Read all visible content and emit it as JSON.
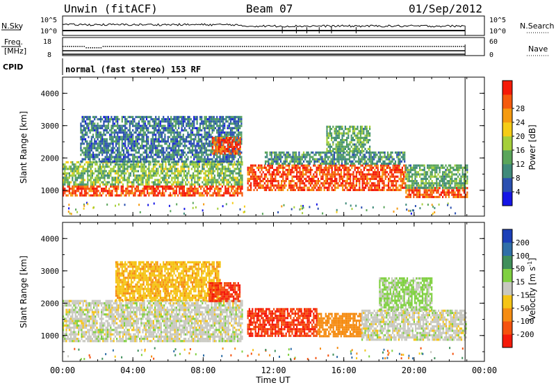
{
  "header": {
    "title": "Unwin (fitACF)",
    "beam": "Beam 07",
    "date": "01/Sep/2012",
    "mode": "normal (fast stereo) 153 RF"
  },
  "left_labels": {
    "nsky": "N.Sky",
    "freq_line1": "Freq.",
    "freq_line2": "[MHz]",
    "cpid": "CPID"
  },
  "right_labels": {
    "nsearch": "N.Search",
    "nave": "Nave"
  },
  "ticks": {
    "nsky_top": "10^5",
    "nsky_bottom": "10^0",
    "freq_top": "18",
    "freq_bottom": "8",
    "nave_top": "60",
    "nave_bottom": "0"
  },
  "axes": {
    "ylabel": "Slant Range [km]",
    "xlabel": "Time UT",
    "x_ticks": [
      "00:00",
      "04:00",
      "08:00",
      "12:00",
      "16:00",
      "20:00",
      "00:00"
    ],
    "y_ticks": [
      "1000",
      "2000",
      "3000",
      "4000"
    ]
  },
  "colorbars": {
    "power": {
      "label": "Power [dB]",
      "ticks": [
        "4",
        "8",
        "12",
        "16",
        "20",
        "24",
        "28"
      ],
      "colors": [
        "#1515e6",
        "#2a4fb0",
        "#3f8a7a",
        "#5aa55a",
        "#a5cf3a",
        "#f5cc16",
        "#f59a10",
        "#f55a0d",
        "#f51a08"
      ]
    },
    "velocity": {
      "label_main": "Velocity [m s",
      "label_sup": "-1",
      "label_end": "]",
      "ticks": [
        "200",
        "100",
        "50",
        "15",
        "-15",
        "-50",
        "-100",
        "-200"
      ],
      "colors": [
        "#1b3fb8",
        "#2f6fa8",
        "#3f8f5a",
        "#7fd040",
        "#c8c8c0",
        "#f5c416",
        "#f58c12",
        "#f5520e",
        "#f51a0a"
      ]
    }
  },
  "chart_data": [
    {
      "type": "heatmap",
      "name": "power",
      "x_range_hours": [
        0,
        24
      ],
      "y_range_km": [
        200,
        4500
      ],
      "colorbar_range_db": [
        0,
        32
      ],
      "scatter_regions": [
        {
          "t": [
            0,
            10.2
          ],
          "range_km": [
            850,
            1150
          ],
          "level_db": 28
        },
        {
          "t": [
            0,
            10.2
          ],
          "range_km": [
            1150,
            1900
          ],
          "level_db": 14
        },
        {
          "t": [
            1,
            10.2
          ],
          "range_km": [
            1900,
            3300
          ],
          "level_db": 8
        },
        {
          "t": [
            8.5,
            10.1
          ],
          "range_km": [
            2150,
            2650
          ],
          "level_db": 28
        },
        {
          "t": [
            10.5,
            19.5
          ],
          "range_km": [
            1000,
            1800
          ],
          "level_db": 28
        },
        {
          "t": [
            11.5,
            19.5
          ],
          "range_km": [
            1800,
            2200
          ],
          "level_db": 10
        },
        {
          "t": [
            15,
            17.5
          ],
          "range_km": [
            2200,
            3000
          ],
          "level_db": 12
        },
        {
          "t": [
            19.5,
            23
          ],
          "range_km": [
            800,
            1100
          ],
          "level_db": 28
        },
        {
          "t": [
            19.5,
            23
          ],
          "range_km": [
            1100,
            1800
          ],
          "level_db": 12
        }
      ]
    },
    {
      "type": "heatmap",
      "name": "velocity",
      "x_range_hours": [
        0,
        24
      ],
      "y_range_km": [
        200,
        4500
      ],
      "colorbar_range_ms": [
        -250,
        250
      ],
      "scatter_regions": [
        {
          "t": [
            0,
            10.2
          ],
          "range_km": [
            850,
            2100
          ],
          "velocity_ms": 0
        },
        {
          "t": [
            3,
            9
          ],
          "range_km": [
            2100,
            3300
          ],
          "velocity_ms": -40
        },
        {
          "t": [
            8.3,
            10.1
          ],
          "range_km": [
            2050,
            2650
          ],
          "velocity_ms": -200
        },
        {
          "t": [
            10.5,
            14.5
          ],
          "range_km": [
            1000,
            1850
          ],
          "velocity_ms": -200
        },
        {
          "t": [
            14.5,
            17
          ],
          "range_km": [
            1000,
            1700
          ],
          "velocity_ms": -80
        },
        {
          "t": [
            17,
            23
          ],
          "range_km": [
            900,
            1800
          ],
          "velocity_ms": 0
        },
        {
          "t": [
            18,
            21
          ],
          "range_km": [
            1800,
            2800
          ],
          "velocity_ms": 20
        }
      ]
    }
  ]
}
